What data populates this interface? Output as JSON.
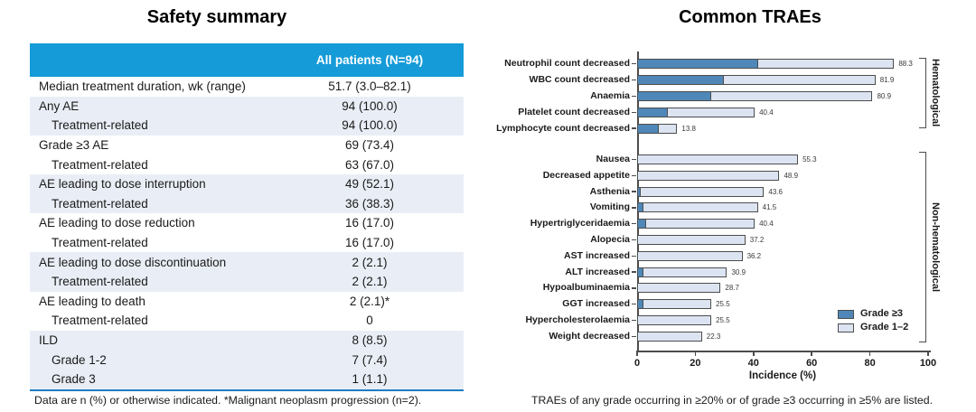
{
  "colors": {
    "header_blue": "#159bd8",
    "row_shade": "#e9eef6",
    "grade3_blue": "#4e87b8",
    "grade12_blue": "#dce4f2",
    "table_bottom_line": "#1f7dc2",
    "axis_gray": "#4d4d4d"
  },
  "chart_data": [
    {
      "type": "table",
      "title": "Safety summary",
      "columns": [
        "",
        "All patients (N=94)"
      ],
      "rows": [
        {
          "label": "Median treatment duration, wk (range)",
          "value": "51.7 (3.0–82.1)",
          "indent": false,
          "shaded": false
        },
        {
          "label": "Any AE",
          "value": "94 (100.0)",
          "indent": false,
          "shaded": true
        },
        {
          "label": "Treatment-related",
          "value": "94 (100.0)",
          "indent": true,
          "shaded": true
        },
        {
          "label": "Grade ≥3 AE",
          "value": "69 (73.4)",
          "indent": false,
          "shaded": false
        },
        {
          "label": "Treatment-related",
          "value": "63 (67.0)",
          "indent": true,
          "shaded": false
        },
        {
          "label": "AE leading to dose interruption",
          "value": "49 (52.1)",
          "indent": false,
          "shaded": true
        },
        {
          "label": "Treatment-related",
          "value": "36 (38.3)",
          "indent": true,
          "shaded": true
        },
        {
          "label": "AE leading to dose reduction",
          "value": "16 (17.0)",
          "indent": false,
          "shaded": false
        },
        {
          "label": "Treatment-related",
          "value": "16 (17.0)",
          "indent": true,
          "shaded": false
        },
        {
          "label": "AE leading to dose discontinuation",
          "value": "2 (2.1)",
          "indent": false,
          "shaded": true
        },
        {
          "label": "Treatment-related",
          "value": "2 (2.1)",
          "indent": true,
          "shaded": true
        },
        {
          "label": "AE leading to death",
          "value": "2 (2.1)*",
          "indent": false,
          "shaded": false
        },
        {
          "label": "Treatment-related",
          "value": "0",
          "indent": true,
          "shaded": false
        },
        {
          "label": "ILD",
          "value": "8 (8.5)",
          "indent": false,
          "shaded": true
        },
        {
          "label": "Grade 1-2",
          "value": "7 (7.4)",
          "indent": true,
          "shaded": true
        },
        {
          "label": "Grade 3",
          "value": "1 (1.1)",
          "indent": true,
          "shaded": true
        }
      ],
      "footnote": "Data are n (%) or otherwise indicated. *Malignant neoplasm progression (n=2)."
    },
    {
      "type": "bar",
      "orientation": "horizontal",
      "stacked": true,
      "title": "Common TRAEs",
      "xlabel": "Incidence (%)",
      "xlim": [
        0,
        100
      ],
      "xticks": [
        0,
        20,
        40,
        60,
        80,
        100
      ],
      "legend": [
        {
          "name": "Grade ≥3",
          "color": "#4e87b8"
        },
        {
          "name": "Grade 1–2",
          "color": "#dce4f2"
        }
      ],
      "groups": [
        {
          "name": "Hematological",
          "bars": [
            {
              "label": "Neutrophil count decreased",
              "any_grade": 88.3,
              "grade_ge3": 41.5
            },
            {
              "label": "WBC count decreased",
              "any_grade": 81.9,
              "grade_ge3": 29.8
            },
            {
              "label": "Anaemia",
              "any_grade": 80.9,
              "grade_ge3": 25.5
            },
            {
              "label": "Platelet count decreased",
              "any_grade": 40.4,
              "grade_ge3": 10.6
            },
            {
              "label": "Lymphocyte count decreased",
              "any_grade": 13.8,
              "grade_ge3": 7.4
            }
          ]
        },
        {
          "name": "Non-hematological",
          "bars": [
            {
              "label": "Nausea",
              "any_grade": 55.3,
              "grade_ge3": 0
            },
            {
              "label": "Decreased appetite",
              "any_grade": 48.9,
              "grade_ge3": 0
            },
            {
              "label": "Asthenia",
              "any_grade": 43.6,
              "grade_ge3": 1.1
            },
            {
              "label": "Vomiting",
              "any_grade": 41.5,
              "grade_ge3": 2.1
            },
            {
              "label": "Hypertriglyceridaemia",
              "any_grade": 40.4,
              "grade_ge3": 3.2
            },
            {
              "label": "Alopecia",
              "any_grade": 37.2,
              "grade_ge3": 0
            },
            {
              "label": "AST increased",
              "any_grade": 36.2,
              "grade_ge3": 0
            },
            {
              "label": "ALT increased",
              "any_grade": 30.9,
              "grade_ge3": 2.1
            },
            {
              "label": "Hypoalbuminaemia",
              "any_grade": 28.7,
              "grade_ge3": 0
            },
            {
              "label": "GGT increased",
              "any_grade": 25.5,
              "grade_ge3": 2.1
            },
            {
              "label": "Hypercholesterolaemia",
              "any_grade": 25.5,
              "grade_ge3": 0
            },
            {
              "label": "Weight decreased",
              "any_grade": 22.3,
              "grade_ge3": 0
            }
          ]
        }
      ],
      "footnote": "TRAEs of any grade occurring in ≥20% or of grade ≥3 occurring in ≥5% are listed."
    }
  ]
}
